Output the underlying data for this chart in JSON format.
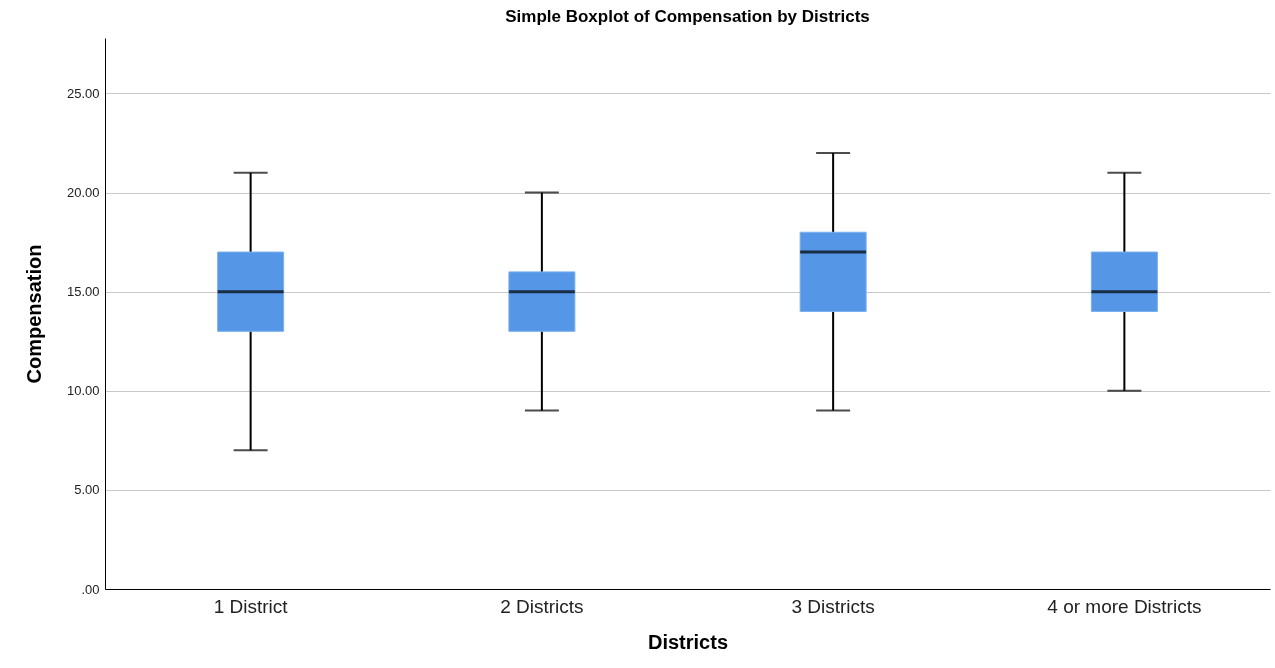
{
  "chart_data": {
    "type": "box",
    "title": "Simple Boxplot of Compensation by Districts",
    "xlabel": "Districts",
    "ylabel": "Compensation",
    "categories": [
      "1 District",
      "2 Districts",
      "3 Districts",
      "4 or more Districts"
    ],
    "series": [
      {
        "color": "#5596e6",
        "boxes": [
          {
            "low": 7,
            "q1": 13,
            "median": 15,
            "q3": 17,
            "high": 21
          },
          {
            "low": 9,
            "q1": 13,
            "median": 15,
            "q3": 16,
            "high": 20
          },
          {
            "low": 9,
            "q1": 14,
            "median": 17,
            "q3": 18,
            "high": 22
          },
          {
            "low": 10,
            "q1": 14,
            "median": 15,
            "q3": 17,
            "high": 21
          }
        ]
      }
    ],
    "ylim": [
      0,
      27.8
    ],
    "yticks": [
      {
        "value": 0,
        "label": ".00"
      },
      {
        "value": 5,
        "label": "5.00"
      },
      {
        "value": 10,
        "label": "10.00"
      },
      {
        "value": 15,
        "label": "15.00"
      },
      {
        "value": 20,
        "label": "20.00"
      },
      {
        "value": 25,
        "label": "25.00"
      }
    ],
    "grid": "y"
  }
}
